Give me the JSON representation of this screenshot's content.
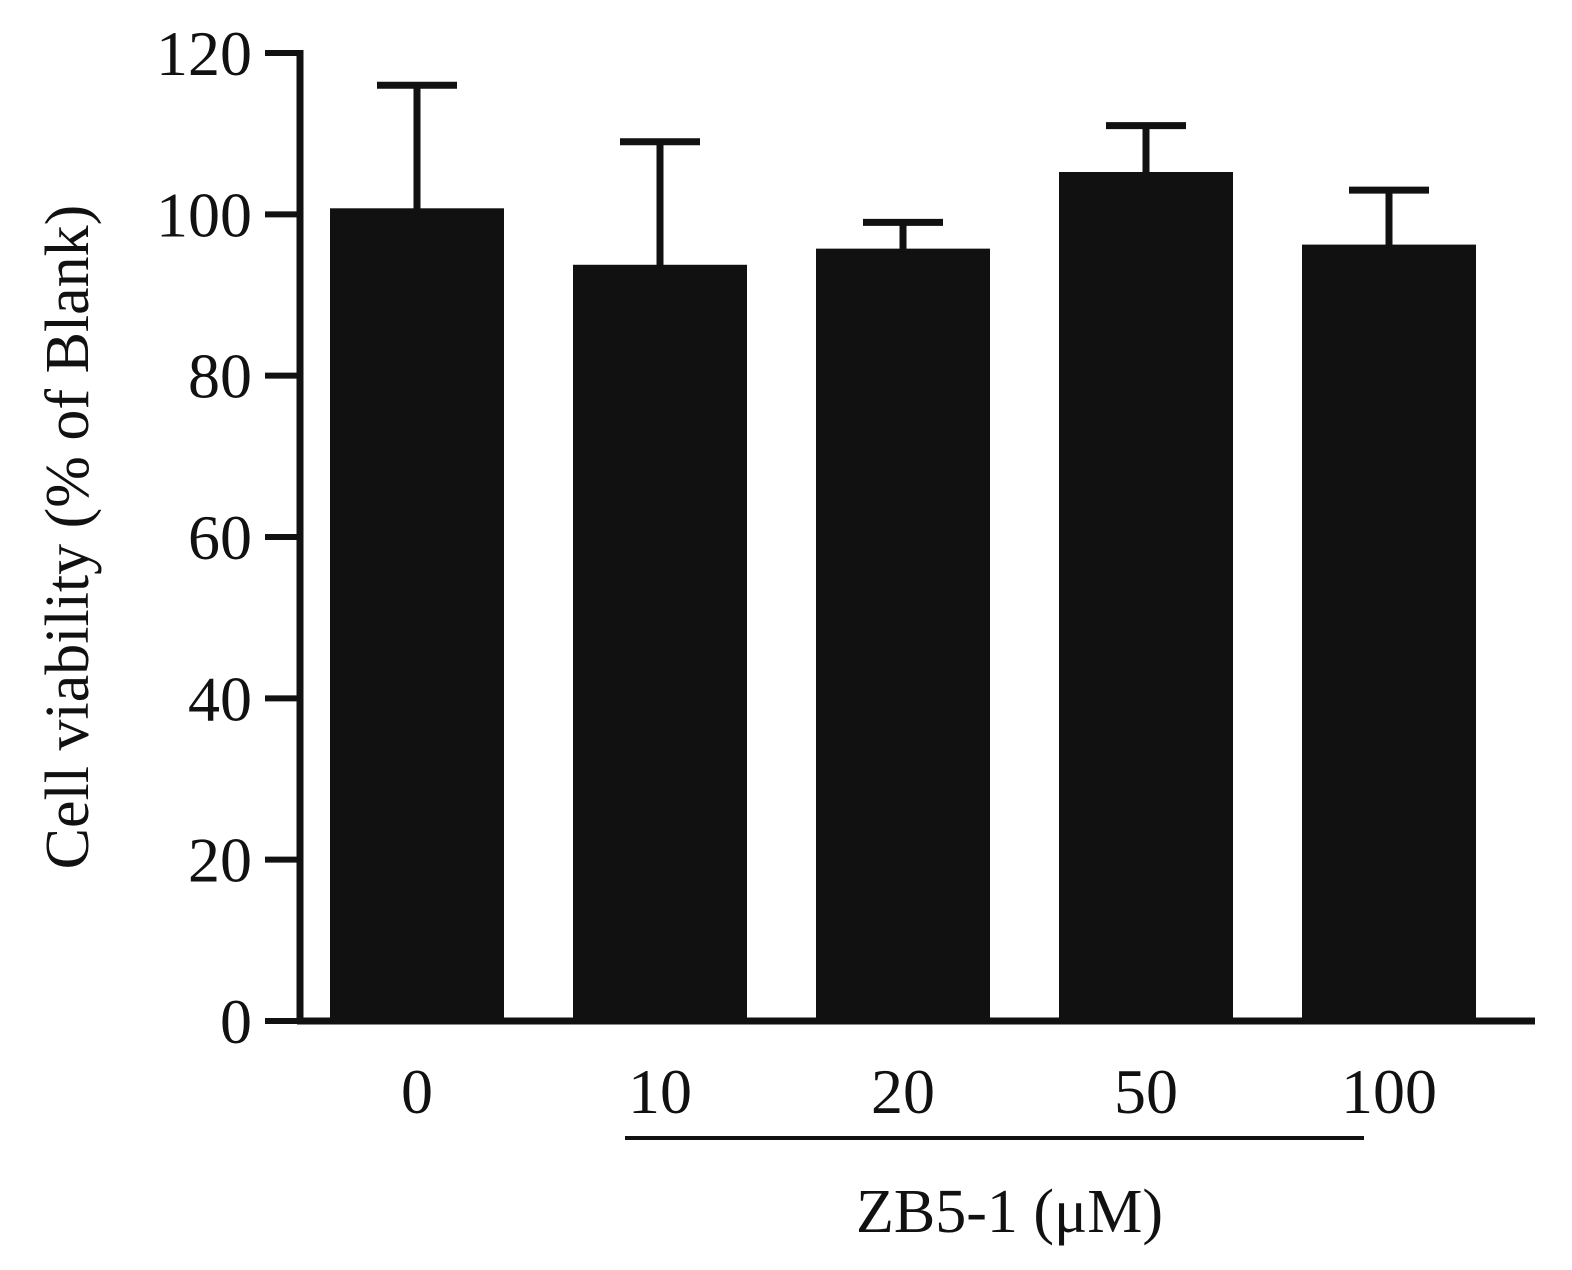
{
  "chart_data": {
    "type": "bar",
    "categories": [
      "0",
      "10",
      "20",
      "50",
      "100"
    ],
    "values": [
      100.5,
      93.5,
      95.5,
      105,
      96
    ],
    "errors": [
      15.5,
      15.5,
      3.5,
      6,
      7
    ],
    "ylabel": "Cell viability (% of Blank)",
    "group_label": "ZB5-1 (μM)",
    "group_categories": [
      "10",
      "20",
      "50",
      "100"
    ],
    "ylim": [
      0,
      120
    ],
    "yticks": [
      0,
      20,
      40,
      60,
      80,
      100,
      120
    ],
    "bar_color": "#111111",
    "grid": false,
    "legend": "none"
  }
}
